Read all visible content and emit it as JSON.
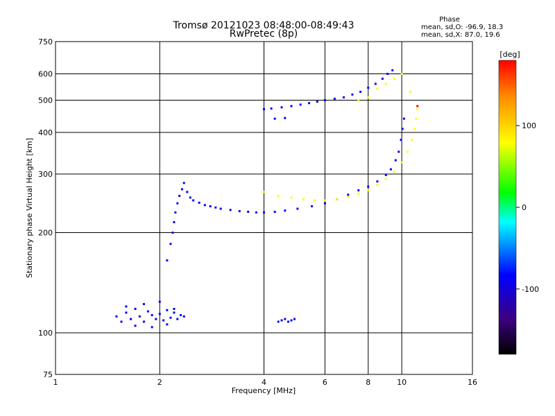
{
  "chart_data": {
    "type": "scatter",
    "title": "Tromsø 20121023 08:48:00-08:49:43",
    "subtitle": "RwPretec (8p)",
    "xlabel": "Frequency [MHz]",
    "ylabel": "Stationary phase Virtual Height [km]",
    "xscale": "log",
    "yscale": "log",
    "xlim": [
      1,
      16
    ],
    "ylim": [
      75,
      750
    ],
    "x_ticks": [
      1,
      2,
      4,
      6,
      8,
      10,
      16
    ],
    "y_ticks": [
      75,
      100,
      200,
      300,
      400,
      500,
      600,
      750
    ],
    "x_gridlines": [
      2,
      4,
      6,
      8,
      10
    ],
    "y_gridlines": [
      100,
      200,
      300,
      400,
      500,
      600
    ],
    "grid": true,
    "phase_info": {
      "heading": "Phase",
      "o_line": "mean, sd,O: -96.9, 18.3",
      "x_line": "mean, sd,X:  87.0, 19.6"
    },
    "colorbar": {
      "label": "[deg]",
      "ticks": [
        100,
        0,
        -100
      ],
      "range": [
        -180,
        180
      ],
      "colors": [
        "#ff0000",
        "#ff8800",
        "#ffff00",
        "#00ff00",
        "#00ffff",
        "#0000ff",
        "#3b0080",
        "#000000"
      ]
    },
    "series": [
      {
        "points": [
          [
            1.5,
            112
          ],
          [
            1.55,
            108
          ],
          [
            1.6,
            115
          ],
          [
            1.65,
            110
          ],
          [
            1.7,
            118
          ],
          [
            1.75,
            112
          ],
          [
            1.8,
            108
          ],
          [
            1.85,
            116
          ],
          [
            1.9,
            113
          ],
          [
            1.95,
            110
          ],
          [
            2.0,
            114
          ],
          [
            2.05,
            109
          ],
          [
            2.1,
            117
          ],
          [
            2.15,
            111
          ],
          [
            2.2,
            115
          ],
          [
            2.25,
            110
          ],
          [
            2.3,
            113
          ],
          [
            2.35,
            112
          ],
          [
            1.6,
            120
          ],
          [
            1.7,
            105
          ],
          [
            1.8,
            122
          ],
          [
            1.9,
            104
          ],
          [
            2.0,
            124
          ],
          [
            2.1,
            106
          ],
          [
            2.2,
            118
          ]
        ]
      },
      {
        "points": [
          [
            2.1,
            165
          ],
          [
            2.15,
            185
          ],
          [
            2.18,
            200
          ],
          [
            2.2,
            215
          ],
          [
            2.22,
            230
          ],
          [
            2.25,
            245
          ],
          [
            2.28,
            258
          ],
          [
            2.32,
            270
          ],
          [
            2.35,
            282
          ],
          [
            2.4,
            265
          ],
          [
            2.45,
            255
          ],
          [
            2.5,
            250
          ],
          [
            2.6,
            246
          ],
          [
            2.7,
            242
          ],
          [
            2.8,
            240
          ],
          [
            2.9,
            238
          ],
          [
            3.0,
            236
          ],
          [
            3.2,
            234
          ],
          [
            3.4,
            232
          ],
          [
            3.6,
            231
          ],
          [
            3.8,
            230
          ],
          [
            4.0,
            230
          ],
          [
            4.3,
            231
          ],
          [
            4.6,
            233
          ],
          [
            5.0,
            236
          ],
          [
            5.5,
            240
          ],
          [
            6.0,
            245
          ],
          [
            6.5,
            252
          ],
          [
            7.0,
            260
          ],
          [
            7.5,
            268
          ],
          [
            8.0,
            275
          ],
          [
            8.5,
            285
          ],
          [
            9.0,
            298
          ],
          [
            9.3,
            310
          ],
          [
            9.6,
            330
          ],
          [
            9.8,
            350
          ],
          [
            9.95,
            380
          ],
          [
            10.05,
            410
          ],
          [
            10.15,
            440
          ]
        ]
      },
      {
        "points": [
          [
            4.0,
            470
          ],
          [
            4.2,
            472
          ],
          [
            4.5,
            476
          ],
          [
            4.8,
            480
          ],
          [
            5.1,
            485
          ],
          [
            5.4,
            490
          ],
          [
            5.7,
            495
          ],
          [
            6.0,
            500
          ],
          [
            6.4,
            505
          ],
          [
            6.8,
            510
          ],
          [
            7.2,
            520
          ],
          [
            7.6,
            530
          ],
          [
            8.0,
            545
          ],
          [
            8.4,
            560
          ],
          [
            8.8,
            580
          ],
          [
            9.1,
            600
          ],
          [
            9.4,
            615
          ],
          [
            4.3,
            440
          ],
          [
            4.6,
            442
          ]
        ]
      },
      {
        "points": [
          [
            4.4,
            108
          ],
          [
            4.5,
            109
          ],
          [
            4.6,
            110
          ],
          [
            4.7,
            108
          ],
          [
            4.8,
            109
          ],
          [
            4.9,
            110
          ]
        ]
      },
      {
        "points": [
          [
            4.0,
            265
          ],
          [
            4.4,
            258
          ],
          [
            4.8,
            255
          ],
          [
            5.2,
            252
          ],
          [
            5.6,
            250
          ],
          [
            6.0,
            250
          ],
          [
            6.5,
            252
          ],
          [
            7.0,
            256
          ],
          [
            7.5,
            262
          ],
          [
            8.0,
            268
          ],
          [
            8.5,
            278
          ],
          [
            9.0,
            290
          ],
          [
            9.5,
            305
          ],
          [
            10.0,
            325
          ],
          [
            10.4,
            350
          ],
          [
            10.7,
            380
          ],
          [
            10.9,
            410
          ],
          [
            11.0,
            440
          ],
          [
            11.1,
            470
          ],
          [
            7.5,
            500
          ],
          [
            8.0,
            510
          ],
          [
            8.5,
            540
          ],
          [
            9.0,
            560
          ],
          [
            9.5,
            580
          ],
          [
            10.0,
            600
          ],
          [
            10.6,
            530
          ]
        ]
      },
      {
        "points": [
          [
            11.1,
            480
          ]
        ]
      }
    ]
  }
}
